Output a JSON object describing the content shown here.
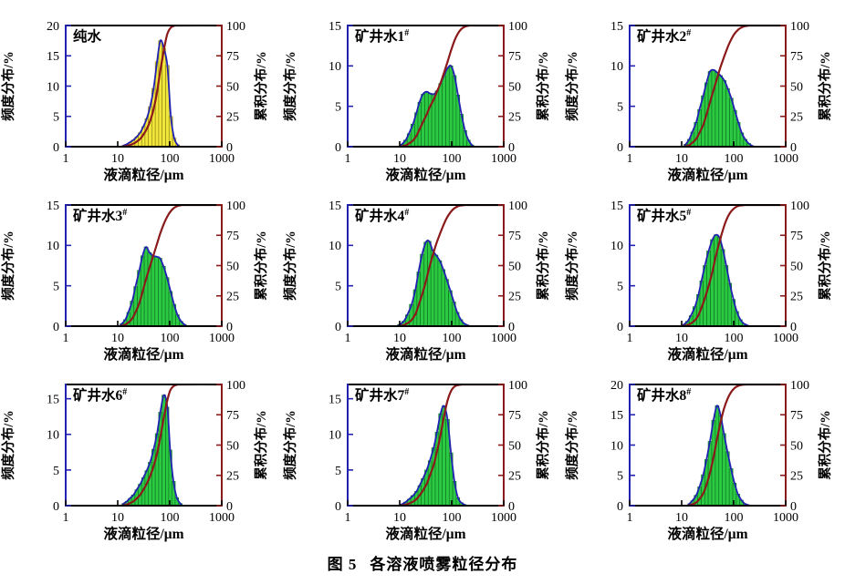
{
  "figure": {
    "caption_prefix": "图 5",
    "caption_text": "各溶液喷雾粒径分布"
  },
  "axes": {
    "xlabel": "液滴粒径/μm",
    "ylabel_left": "频度分布/%",
    "ylabel_right": "累积分布/%",
    "xscale": "log",
    "xlim": [
      1,
      1000
    ],
    "xticks": [
      1,
      10,
      100,
      1000
    ],
    "right_lim": [
      0,
      100
    ],
    "right_ticks": [
      0,
      25,
      50,
      75,
      100
    ]
  },
  "colors": {
    "freq_axis": "#2222b2",
    "cum_axis": "#8b1a1a",
    "frame": "#000000",
    "envelope": "#2222b2",
    "cumulative": "#8b1a1a",
    "bar_yellow": "#f2e63c",
    "bar_yellow_stroke": "#938a12",
    "bar_green": "#2cc943",
    "bar_green_stroke": "#0e7a22",
    "text": "#000000"
  },
  "chart_data": [
    {
      "type": "bar",
      "title": "纯水",
      "sup": "",
      "bar_color": "#f2e63c",
      "bar_stroke": "#938a12",
      "ylim": [
        0,
        20
      ],
      "yticks": [
        0,
        5,
        10,
        15,
        20
      ],
      "x_um": [
        13,
        15,
        17,
        20,
        23,
        27,
        31,
        36,
        42,
        49,
        57,
        66,
        77,
        90,
        105,
        122,
        142
      ],
      "freq_pct": [
        0.2,
        0.4,
        0.7,
        1.1,
        1.6,
        2.3,
        3.3,
        4.6,
        6.6,
        9.6,
        14.0,
        17.5,
        16.2,
        13.4,
        5.0,
        1.4,
        0.3
      ]
    },
    {
      "type": "bar",
      "title": "矿井水1",
      "sup": "#",
      "bar_color": "#2cc943",
      "bar_stroke": "#0e7a22",
      "ylim": [
        0,
        15
      ],
      "yticks": [
        0,
        5,
        10,
        15
      ],
      "x_um": [
        11,
        13,
        15,
        18,
        21,
        24,
        28,
        33,
        38,
        45,
        52,
        61,
        71,
        83,
        97,
        113,
        132,
        154,
        180,
        210,
        245
      ],
      "freq_pct": [
        0.3,
        0.8,
        1.6,
        2.8,
        4.2,
        5.5,
        6.5,
        6.8,
        6.6,
        6.5,
        6.9,
        7.8,
        8.8,
        9.7,
        10.0,
        8.8,
        6.4,
        4.0,
        2.0,
        0.8,
        0.2
      ]
    },
    {
      "type": "bar",
      "title": "矿井水2",
      "sup": "#",
      "bar_color": "#2cc943",
      "bar_stroke": "#0e7a22",
      "ylim": [
        0,
        15
      ],
      "yticks": [
        0,
        5,
        10,
        15
      ],
      "x_um": [
        12,
        14,
        16,
        19,
        22,
        26,
        30,
        35,
        41,
        48,
        56,
        66,
        77,
        90,
        105,
        123,
        143,
        167,
        195,
        228
      ],
      "freq_pct": [
        0.3,
        0.9,
        1.8,
        3.0,
        4.6,
        6.3,
        7.9,
        9.3,
        9.5,
        9.2,
        8.8,
        8.2,
        7.2,
        6.0,
        4.5,
        3.0,
        1.7,
        0.9,
        0.4,
        0.1
      ]
    },
    {
      "type": "bar",
      "title": "矿井水3",
      "sup": "#",
      "bar_color": "#2cc943",
      "bar_stroke": "#0e7a22",
      "ylim": [
        0,
        15
      ],
      "yticks": [
        0,
        5,
        10,
        15
      ],
      "x_um": [
        12,
        14,
        16,
        19,
        22,
        26,
        30,
        35,
        41,
        48,
        56,
        65,
        76,
        89,
        104,
        121,
        141,
        165,
        192
      ],
      "freq_pct": [
        0.3,
        0.8,
        1.7,
        3.1,
        4.9,
        6.9,
        8.7,
        9.8,
        9.1,
        8.7,
        8.6,
        8.4,
        7.4,
        6.0,
        4.3,
        2.7,
        1.4,
        0.6,
        0.2
      ]
    },
    {
      "type": "bar",
      "title": "矿井水4",
      "sup": "#",
      "bar_color": "#2cc943",
      "bar_stroke": "#0e7a22",
      "ylim": [
        0,
        15
      ],
      "yticks": [
        0,
        5,
        10,
        15
      ],
      "x_um": [
        10,
        12,
        14,
        17,
        20,
        23,
        27,
        32,
        37,
        43,
        50,
        59,
        69,
        80,
        94,
        110,
        128,
        150,
        175,
        205
      ],
      "freq_pct": [
        0.2,
        0.6,
        1.4,
        2.7,
        4.5,
        6.7,
        8.9,
        10.4,
        10.5,
        9.4,
        8.8,
        8.1,
        7.0,
        5.8,
        4.4,
        3.0,
        1.7,
        0.8,
        0.3,
        0.1
      ]
    },
    {
      "type": "bar",
      "title": "矿井水5",
      "sup": "#",
      "bar_color": "#2cc943",
      "bar_stroke": "#0e7a22",
      "ylim": [
        0,
        15
      ],
      "yticks": [
        0,
        5,
        10,
        15
      ],
      "x_um": [
        11,
        13,
        15,
        18,
        21,
        24,
        28,
        33,
        39,
        45,
        53,
        62,
        72,
        84,
        99,
        115,
        135,
        158,
        184
      ],
      "freq_pct": [
        0.2,
        0.6,
        1.3,
        2.4,
        3.9,
        5.6,
        7.5,
        9.3,
        10.7,
        11.3,
        11.0,
        9.5,
        7.5,
        5.3,
        3.3,
        1.8,
        0.8,
        0.3,
        0.1
      ]
    },
    {
      "type": "bar",
      "title": "矿井水6",
      "sup": "#",
      "bar_color": "#2cc943",
      "bar_stroke": "#0e7a22",
      "ylim": [
        0,
        17
      ],
      "yticks": [
        0,
        5,
        10,
        15
      ],
      "x_um": [
        13,
        15,
        17,
        20,
        23,
        27,
        31,
        36,
        42,
        49,
        57,
        66,
        77,
        90,
        102,
        118,
        137,
        160
      ],
      "freq_pct": [
        0.3,
        0.6,
        1.0,
        1.5,
        2.2,
        3.0,
        3.9,
        4.9,
        6.1,
        7.9,
        10.1,
        13.1,
        15.5,
        13.8,
        7.8,
        3.4,
        1.1,
        0.3
      ]
    },
    {
      "type": "bar",
      "title": "矿井水7",
      "sup": "#",
      "bar_color": "#2cc943",
      "bar_stroke": "#0e7a22",
      "ylim": [
        0,
        17
      ],
      "yticks": [
        0,
        5,
        10,
        15
      ],
      "x_um": [
        11,
        13,
        15,
        18,
        21,
        24,
        28,
        33,
        38,
        45,
        52,
        61,
        71,
        83,
        97,
        113,
        132,
        154,
        180
      ],
      "freq_pct": [
        0.2,
        0.5,
        0.9,
        1.4,
        2.0,
        2.8,
        3.8,
        5.0,
        6.3,
        8.1,
        10.3,
        12.9,
        14.0,
        12.1,
        7.4,
        3.4,
        1.1,
        0.4,
        0.1
      ]
    },
    {
      "type": "bar",
      "title": "矿井水8",
      "sup": "#",
      "bar_color": "#2cc943",
      "bar_stroke": "#0e7a22",
      "ylim": [
        0,
        20
      ],
      "yticks": [
        0,
        5,
        10,
        15,
        20
      ],
      "x_um": [
        14,
        16,
        19,
        22,
        26,
        30,
        35,
        41,
        48,
        56,
        65,
        76,
        89,
        104,
        121,
        141,
        165,
        192
      ],
      "freq_pct": [
        0.3,
        0.8,
        1.7,
        3.1,
        5.1,
        7.6,
        10.6,
        14.1,
        16.5,
        14.9,
        11.9,
        8.9,
        6.1,
        3.7,
        1.9,
        0.9,
        0.3,
        0.1
      ]
    }
  ]
}
